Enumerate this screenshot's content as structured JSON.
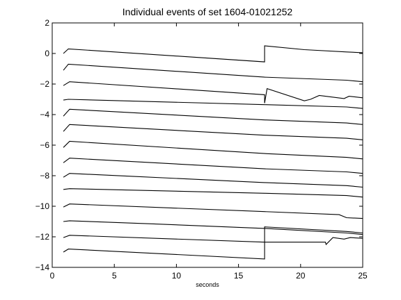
{
  "chart_data": {
    "type": "line",
    "title": "Individual events of set 1604-01021252",
    "xlabel": "seconds",
    "ylabel": "",
    "xlim": [
      0,
      25
    ],
    "ylim": [
      -14,
      2
    ],
    "xticks": [
      0,
      5,
      10,
      15,
      20,
      25
    ],
    "yticks": [
      2,
      0,
      -2,
      -4,
      -6,
      -8,
      -10,
      -12,
      -14
    ],
    "grid": false,
    "legend": "none",
    "line_color": "#000000",
    "series": [
      {
        "x": [
          0.9,
          1.3,
          17.1,
          17.1,
          20.3,
          23.7,
          25
        ],
        "y": [
          0.0,
          0.3,
          -0.55,
          0.5,
          0.25,
          0.1,
          0.05
        ]
      },
      {
        "x": [
          0.9,
          1.3,
          17.1,
          23.7,
          25
        ],
        "y": [
          -1.1,
          -0.7,
          -1.55,
          -1.75,
          -1.85
        ]
      },
      {
        "x": [
          0.9,
          1.4,
          17.1,
          17.1,
          17.3,
          20.3,
          20.8,
          21.5,
          23.5,
          23.9,
          25
        ],
        "y": [
          -2.1,
          -1.85,
          -2.7,
          -3.25,
          -2.3,
          -3.1,
          -3.0,
          -2.75,
          -2.95,
          -2.8,
          -2.9
        ]
      },
      {
        "x": [
          0.9,
          1.3,
          17.1,
          23.7,
          25
        ],
        "y": [
          -3.05,
          -3.0,
          -3.35,
          -3.5,
          -3.6
        ]
      },
      {
        "x": [
          0.9,
          1.4,
          17.1,
          23.7,
          25
        ],
        "y": [
          -4.1,
          -3.65,
          -4.35,
          -4.55,
          -4.65
        ]
      },
      {
        "x": [
          0.9,
          1.4,
          17.1,
          23.7,
          25
        ],
        "y": [
          -5.1,
          -4.65,
          -5.35,
          -5.55,
          -5.65
        ]
      },
      {
        "x": [
          0.9,
          1.4,
          17.1,
          23.7,
          25
        ],
        "y": [
          -6.15,
          -5.75,
          -6.55,
          -6.8,
          -6.9
        ]
      },
      {
        "x": [
          0.9,
          1.4,
          17.1,
          23.7,
          25
        ],
        "y": [
          -7.15,
          -6.85,
          -7.55,
          -7.75,
          -7.85
        ]
      },
      {
        "x": [
          0.9,
          1.4,
          17.1,
          23.7,
          25
        ],
        "y": [
          -8.1,
          -7.85,
          -8.45,
          -8.65,
          -8.75
        ]
      },
      {
        "x": [
          0.9,
          1.4,
          17.1,
          23.7,
          25
        ],
        "y": [
          -8.9,
          -8.85,
          -9.15,
          -9.3,
          -9.4
        ]
      },
      {
        "x": [
          0.9,
          1.4,
          17.1,
          23.1,
          23.7,
          25
        ],
        "y": [
          -10.05,
          -9.85,
          -10.35,
          -10.55,
          -10.75,
          -10.8
        ]
      },
      {
        "x": [
          0.9,
          1.4,
          8.0,
          17.1,
          23.7,
          25
        ],
        "y": [
          -11.0,
          -10.95,
          -11.15,
          -11.45,
          -11.75,
          -11.85
        ]
      },
      {
        "x": [
          0.9,
          1.4,
          17.1,
          17.1,
          22.0,
          22.05,
          22.6,
          23.5,
          24.0,
          25
        ],
        "y": [
          -12.05,
          -11.9,
          -12.35,
          -12.35,
          -12.35,
          -12.5,
          -12.05,
          -12.15,
          -12.05,
          -12.1
        ]
      },
      {
        "x": [
          0.9,
          1.3,
          17.1,
          17.1,
          23.7,
          25
        ],
        "y": [
          -13.0,
          -12.8,
          -13.45,
          -11.35,
          -11.65,
          -11.75
        ]
      }
    ]
  }
}
